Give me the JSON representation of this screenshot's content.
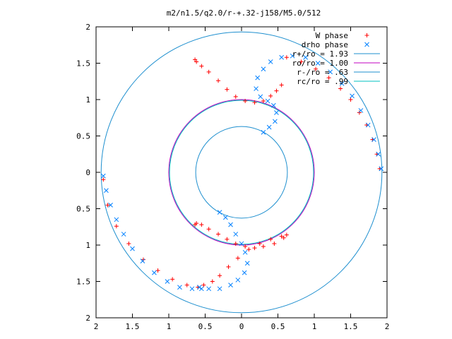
{
  "chart_data": {
    "type": "scatter",
    "title": "m2/n1.5/q2.0/r-+.32-j158/M5.0/512",
    "xlabel": "",
    "ylabel": "",
    "xlim": [
      -2,
      2
    ],
    "ylim": [
      -2,
      2
    ],
    "x_tick_values": [
      -2,
      -1.5,
      -1,
      -0.5,
      0,
      0.5,
      1,
      1.5,
      2
    ],
    "x_tick_labels": [
      "2",
      "1.5",
      "1",
      "0.5",
      "0",
      "0.5",
      "1",
      "1.5",
      "2"
    ],
    "y_tick_values": [
      -2,
      -1.5,
      -1,
      -0.5,
      0,
      0.5,
      1,
      1.5,
      2
    ],
    "y_tick_labels": [
      "2",
      "1.5",
      "1",
      "0.5",
      "0",
      "0.5",
      "1",
      "1.5",
      "2"
    ],
    "grid": false,
    "legend_position": "top-right",
    "series": [
      {
        "name": "W phase",
        "marker": "plus",
        "color": "#ff0000",
        "x": [
          1.9,
          1.86,
          1.8,
          1.72,
          1.62,
          1.5,
          1.36,
          1.2,
          1.02,
          0.82,
          0.62,
          0.55,
          0.48,
          0.4,
          0.3,
          0.18,
          0.05,
          -0.08,
          -0.2,
          -0.32,
          -0.45,
          -0.55,
          -0.62,
          -0.64,
          -0.52,
          -0.4,
          -0.3,
          -0.18,
          -0.05,
          0.1,
          0.25,
          0.4,
          0.55,
          0.62,
          0.58,
          0.45,
          0.3,
          0.18,
          0.05,
          -0.08,
          -0.2,
          -0.32,
          -0.45,
          -0.55,
          -0.62,
          -0.64,
          -0.6,
          -0.75,
          -0.95,
          -1.15,
          -1.35,
          -1.55,
          -1.72,
          -1.84,
          -1.9
        ],
        "y": [
          0.05,
          0.25,
          0.45,
          0.65,
          0.82,
          1.0,
          1.15,
          1.3,
          1.42,
          1.52,
          1.58,
          1.2,
          1.12,
          1.05,
          0.98,
          0.96,
          0.98,
          1.04,
          1.14,
          1.26,
          1.38,
          1.46,
          1.52,
          1.55,
          -1.55,
          -1.5,
          -1.42,
          -1.3,
          -1.18,
          -1.06,
          -0.98,
          -0.92,
          -0.88,
          -0.86,
          -0.9,
          -0.98,
          -1.02,
          -1.04,
          -1.02,
          -0.98,
          -0.92,
          -0.85,
          -0.78,
          -0.72,
          -0.7,
          -0.72,
          -1.58,
          -1.55,
          -1.47,
          -1.35,
          -1.2,
          -0.98,
          -0.74,
          -0.45,
          -0.1
        ]
      },
      {
        "name": "drho phase",
        "marker": "cross",
        "color": "#0080ff",
        "x": [
          1.92,
          1.88,
          1.82,
          1.74,
          1.64,
          1.52,
          1.38,
          1.22,
          1.05,
          0.88,
          0.7,
          0.55,
          0.4,
          0.3,
          0.22,
          0.2,
          0.26,
          0.36,
          0.44,
          0.48,
          0.46,
          0.38,
          0.3,
          -0.3,
          -0.22,
          -0.15,
          -0.08,
          0.0,
          0.05,
          0.08,
          0.04,
          -0.05,
          -0.15,
          -0.3,
          -0.45,
          -0.58,
          -1.9,
          -1.86,
          -1.8,
          -1.72,
          -1.62,
          -1.5,
          -1.36,
          -1.2,
          -1.02,
          -0.85,
          -0.68,
          -0.55
        ],
        "y": [
          0.05,
          0.25,
          0.45,
          0.65,
          0.85,
          1.05,
          1.22,
          1.38,
          1.5,
          1.58,
          1.6,
          1.58,
          1.52,
          1.42,
          1.3,
          1.15,
          1.04,
          0.98,
          0.92,
          0.82,
          0.7,
          0.62,
          0.55,
          -0.55,
          -0.62,
          -0.72,
          -0.85,
          -0.98,
          -1.1,
          -1.25,
          -1.38,
          -1.48,
          -1.55,
          -1.6,
          -1.6,
          -1.58,
          -0.05,
          -0.25,
          -0.45,
          -0.65,
          -0.85,
          -1.05,
          -1.22,
          -1.38,
          -1.5,
          -1.58,
          -1.6,
          -1.6
        ]
      },
      {
        "name": "r+/ro = 1.93",
        "type": "circle",
        "radius": 1.93,
        "color": "#1e8fcf"
      },
      {
        "name": "ro/ro = 1.00",
        "type": "circle",
        "radius": 1.0,
        "color": "#c000c0"
      },
      {
        "name": "r-/ro = .63",
        "type": "circle",
        "radius": 0.63,
        "color": "#1e8fcf"
      },
      {
        "name": "rc/ro = .99",
        "type": "circle",
        "radius": 0.99,
        "color": "#00c0c0"
      }
    ]
  }
}
